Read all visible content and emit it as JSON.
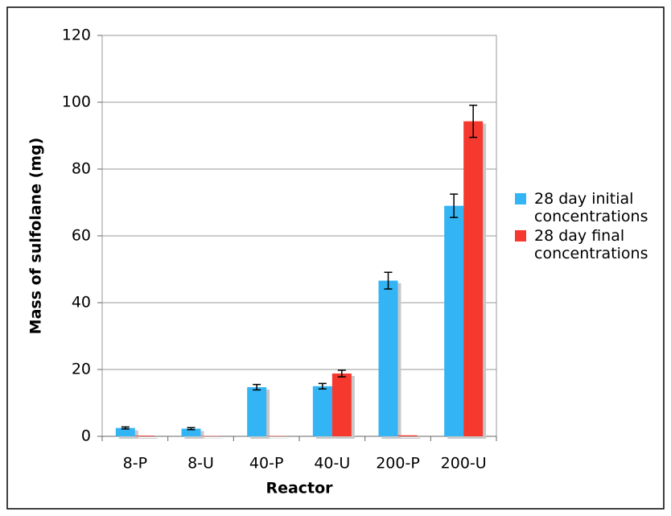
{
  "chart_data": {
    "type": "bar",
    "x_label": "Reactor",
    "y_label": "Mass of sulfolane (mg)",
    "categories": [
      "8-P",
      "8-U",
      "40-P",
      "40-U",
      "200-P",
      "200-U"
    ],
    "series": [
      {
        "name": "28 day initial concentrations",
        "color": "#33b5f5",
        "values": [
          2.5,
          2.3,
          14.7,
          15.0,
          46.6,
          69.0
        ],
        "errors": [
          0.3,
          0.3,
          0.8,
          0.8,
          2.5,
          3.5
        ]
      },
      {
        "name": "28 day final concentrations",
        "color": "#f5392f",
        "values": [
          0.2,
          0.1,
          0.1,
          18.8,
          0.3,
          94.3
        ],
        "errors": [
          0,
          0,
          0,
          1.0,
          0,
          4.8
        ]
      }
    ],
    "ylim": [
      0,
      120
    ],
    "yticks": [
      0,
      20,
      40,
      60,
      80,
      100,
      120
    ],
    "grid": true
  }
}
